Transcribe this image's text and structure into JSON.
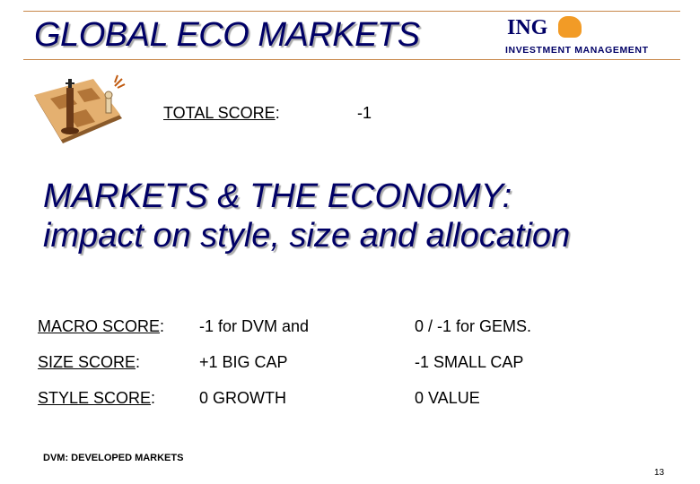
{
  "header": {
    "title": "GLOBAL ECO MARKETS",
    "logo": "ING",
    "logo_sub": "INVESTMENT MANAGEMENT",
    "logo_icon": "lion-icon"
  },
  "total": {
    "label": "TOTAL SCORE",
    "value": "-1",
    "icon": "chess-icon"
  },
  "heading": {
    "line1": "MARKETS & THE ECONOMY:",
    "line2": "impact on style, size and allocation"
  },
  "scores": [
    {
      "label": "MACRO SCORE",
      "col1": "-1  for DVM and",
      "col2": "0 / -1  for GEMS."
    },
    {
      "label": "SIZE SCORE",
      "col1": "+1 BIG CAP",
      "col2": "-1 SMALL CAP"
    },
    {
      "label": "STYLE SCORE",
      "col1": "0  GROWTH",
      "col2": "0 VALUE"
    }
  ],
  "footnote": "DVM: DEVELOPED MARKETS",
  "page_number": "13",
  "colors": {
    "title": "#000066",
    "rule": "#c8874a",
    "logo_accent": "#f08a00"
  }
}
